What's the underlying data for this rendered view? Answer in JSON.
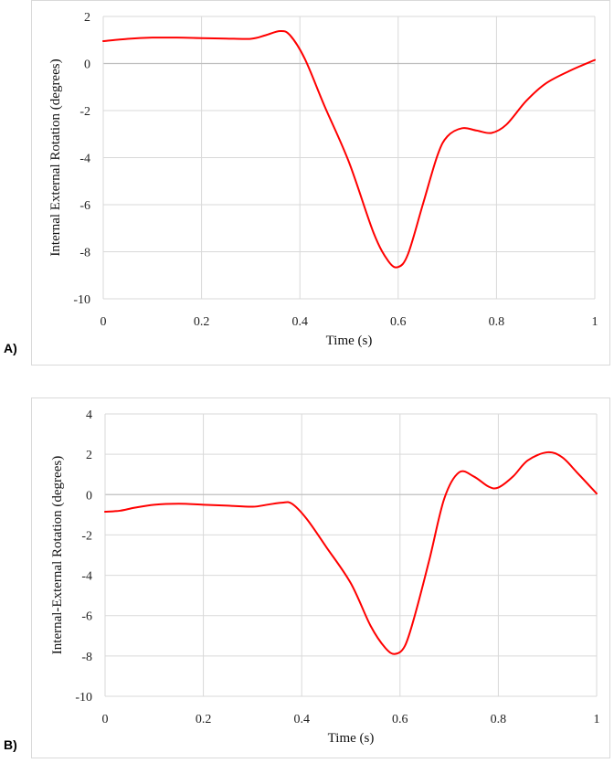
{
  "chart_data": [
    {
      "type": "line",
      "panel_label": "A)",
      "xlabel": "Time (s)",
      "ylabel": "Internal External Rotation (degrees)",
      "xlim": [
        0,
        1
      ],
      "ylim": [
        -10,
        2
      ],
      "x_ticks": [
        0,
        0.2,
        0.4,
        0.6,
        0.8,
        1
      ],
      "x_tick_labels": [
        "0",
        "0.2",
        "0.4",
        "0.6",
        "0.8",
        "1"
      ],
      "y_ticks": [
        2,
        0,
        -2,
        -4,
        -6,
        -8,
        -10
      ],
      "y_tick_labels": [
        "2",
        "0",
        "-2",
        "-4",
        "-6",
        "-8",
        "-10"
      ],
      "grid": true,
      "line_color": "#ff0000",
      "series": [
        {
          "name": "Internal External Rotation",
          "x": [
            0,
            0.05,
            0.1,
            0.15,
            0.2,
            0.25,
            0.3,
            0.33,
            0.36,
            0.38,
            0.41,
            0.45,
            0.5,
            0.55,
            0.58,
            0.6,
            0.62,
            0.65,
            0.68,
            0.7,
            0.73,
            0.76,
            0.79,
            0.82,
            0.86,
            0.9,
            0.95,
            1.0
          ],
          "y": [
            0.95,
            1.05,
            1.1,
            1.1,
            1.08,
            1.06,
            1.05,
            1.2,
            1.38,
            1.2,
            0.2,
            -1.8,
            -4.2,
            -7.2,
            -8.4,
            -8.65,
            -8.1,
            -6.0,
            -3.9,
            -3.1,
            -2.75,
            -2.85,
            -2.95,
            -2.6,
            -1.6,
            -0.85,
            -0.3,
            0.15
          ]
        }
      ]
    },
    {
      "type": "line",
      "panel_label": "B)",
      "xlabel": "Time (s)",
      "ylabel": "Internal-External Rotation (degrees)",
      "xlim": [
        0,
        1
      ],
      "ylim": [
        -10,
        4
      ],
      "x_ticks": [
        0,
        0.2,
        0.4,
        0.6,
        0.8,
        1
      ],
      "x_tick_labels": [
        "0",
        "0.2",
        "0.4",
        "0.6",
        "0.8",
        "1"
      ],
      "y_ticks": [
        4,
        2,
        0,
        -2,
        -4,
        -6,
        -8,
        -10
      ],
      "y_tick_labels": [
        "4",
        "2",
        "0",
        "-2",
        "-4",
        "-6",
        "-8",
        "-10"
      ],
      "grid": true,
      "line_color": "#ff0000",
      "series": [
        {
          "name": "Internal-External Rotation",
          "x": [
            0,
            0.03,
            0.06,
            0.1,
            0.15,
            0.2,
            0.25,
            0.3,
            0.33,
            0.36,
            0.38,
            0.41,
            0.45,
            0.5,
            0.54,
            0.57,
            0.59,
            0.61,
            0.63,
            0.66,
            0.69,
            0.72,
            0.75,
            0.78,
            0.8,
            0.83,
            0.86,
            0.9,
            0.93,
            0.96,
            1.0
          ],
          "y": [
            -0.85,
            -0.8,
            -0.65,
            -0.5,
            -0.45,
            -0.5,
            -0.55,
            -0.6,
            -0.5,
            -0.4,
            -0.45,
            -1.2,
            -2.6,
            -4.4,
            -6.5,
            -7.6,
            -7.9,
            -7.5,
            -6.0,
            -3.2,
            -0.2,
            1.1,
            0.9,
            0.4,
            0.35,
            0.9,
            1.7,
            2.1,
            1.85,
            1.1,
            0.05
          ]
        }
      ]
    }
  ]
}
